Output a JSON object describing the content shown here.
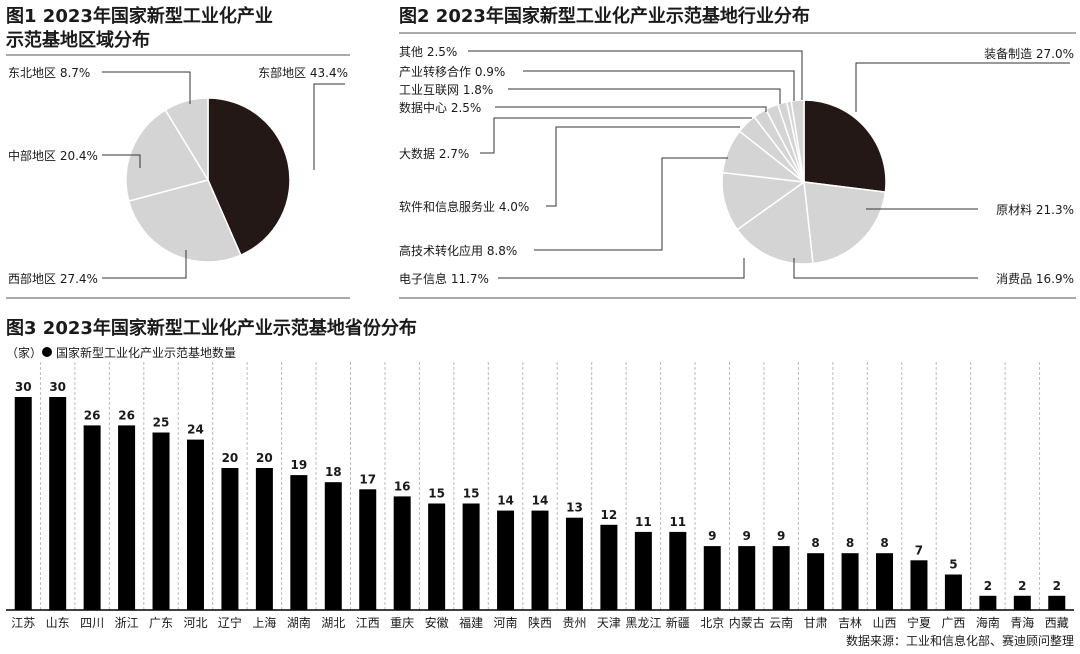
{
  "chart_data": [
    {
      "type": "pie",
      "title_lines": [
        "图1 2023年国家新型工业化产业",
        "示范基地区域分布"
      ],
      "slices": [
        {
          "label": "东部地区",
          "value": 43.4,
          "display": "43.4%",
          "color": "#231815"
        },
        {
          "label": "西部地区",
          "value": 27.4,
          "display": "27.4%",
          "color": "#d4d4d4"
        },
        {
          "label": "中部地区",
          "value": 20.4,
          "display": "20.4%",
          "color": "#d4d4d4"
        },
        {
          "label": "东北地区",
          "value": 8.7,
          "display": "8.7%",
          "color": "#d4d4d4"
        }
      ]
    },
    {
      "type": "pie",
      "title": "图2 2023年国家新型工业化产业示范基地行业分布",
      "slices": [
        {
          "label": "装备制造",
          "value": 27.0,
          "display": "27.0%",
          "color": "#231815"
        },
        {
          "label": "原材料",
          "value": 21.3,
          "display": "21.3%",
          "color": "#d4d4d4"
        },
        {
          "label": "消费品",
          "value": 16.9,
          "display": "16.9%",
          "color": "#d4d4d4"
        },
        {
          "label": "电子信息",
          "value": 11.7,
          "display": "11.7%",
          "color": "#d4d4d4"
        },
        {
          "label": "高技术转化应用",
          "value": 8.8,
          "display": "8.8%",
          "color": "#d4d4d4"
        },
        {
          "label": "软件和信息服务业",
          "value": 4.0,
          "display": "4.0%",
          "color": "#d4d4d4"
        },
        {
          "label": "大数据",
          "value": 2.7,
          "display": "2.7%",
          "color": "#d4d4d4"
        },
        {
          "label": "数据中心",
          "value": 2.5,
          "display": "2.5%",
          "color": "#d4d4d4"
        },
        {
          "label": "工业互联网",
          "value": 1.8,
          "display": "1.8%",
          "color": "#d4d4d4"
        },
        {
          "label": "产业转移合作",
          "value": 0.9,
          "display": "0.9%",
          "color": "#d4d4d4"
        },
        {
          "label": "其他",
          "value": 2.5,
          "display": "2.5%",
          "color": "#d4d4d4"
        }
      ]
    },
    {
      "type": "bar",
      "title": "图3  2023年国家新型工业化产业示范基地省份分布",
      "unit": "（家）",
      "legend": "国家新型工业化产业示范基地数量",
      "categories": [
        "江苏",
        "山东",
        "四川",
        "浙江",
        "广东",
        "河北",
        "辽宁",
        "上海",
        "湖南",
        "湖北",
        "江西",
        "重庆",
        "安徽",
        "福建",
        "河南",
        "陕西",
        "贵州",
        "天津",
        "黑龙江",
        "新疆",
        "北京",
        "内蒙古",
        "云南",
        "甘肃",
        "吉林",
        "山西",
        "宁夏",
        "广西",
        "海南",
        "青海",
        "西藏"
      ],
      "values": [
        30,
        30,
        26,
        26,
        25,
        24,
        20,
        20,
        19,
        18,
        17,
        16,
        15,
        15,
        14,
        14,
        13,
        12,
        11,
        11,
        9,
        9,
        9,
        8,
        8,
        8,
        7,
        5,
        2,
        2,
        2
      ],
      "ylim": [
        0,
        30
      ],
      "bar_color": "#000000",
      "grid": true
    }
  ],
  "source": "数据来源：工业和信息化部、赛迪顾问整理"
}
